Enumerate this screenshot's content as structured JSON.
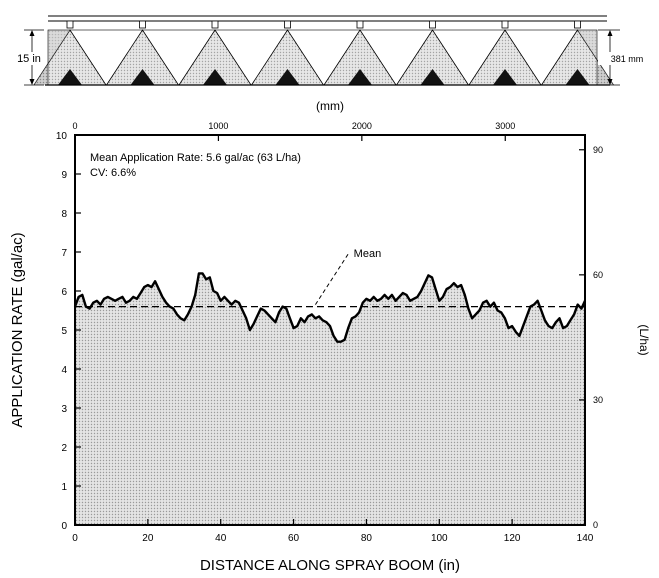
{
  "header": {
    "height_left_label": "15 in",
    "height_right_label": "381 mm",
    "nozzle_count": 8
  },
  "colors": {
    "fill": "#d6d6d6",
    "line": "#000000"
  },
  "chart_data": {
    "type": "area",
    "title": "",
    "xlabel": "DISTANCE ALONG SPRAY BOOM (in)",
    "ylabel": "APPLICATION RATE (gal/ac)",
    "x2label": "(mm)",
    "y2label": "(L/ha)",
    "xlim": [
      0,
      140
    ],
    "ylim": [
      0,
      10
    ],
    "x_ticks": [
      0,
      20,
      40,
      60,
      80,
      100,
      120,
      140
    ],
    "y_ticks": [
      0,
      1,
      2,
      3,
      4,
      5,
      6,
      7,
      8,
      9,
      10
    ],
    "x2_ticks": [
      0,
      1000,
      2000,
      3000
    ],
    "y2_ticks": [
      0,
      30,
      60,
      90
    ],
    "grid": false,
    "annotations": {
      "mean_rate": "Mean Application Rate: 5.6 gal/ac (63 L/ha)",
      "cv": "CV: 6.6%",
      "mean_label": "Mean"
    },
    "mean": 5.6,
    "series": [
      {
        "x": [
          0,
          1,
          2,
          3,
          4,
          5,
          6,
          7,
          8,
          9,
          10,
          11,
          12,
          13,
          14,
          15,
          16,
          17,
          18,
          19,
          20,
          21,
          22,
          23,
          24,
          25,
          26,
          27,
          28,
          29,
          30,
          31,
          32,
          33,
          34,
          35,
          36,
          37,
          38,
          39,
          40,
          41,
          42,
          43,
          44,
          45,
          46,
          47,
          48,
          49,
          50,
          51,
          52,
          53,
          54,
          55,
          56,
          57,
          58,
          59,
          60,
          61,
          62,
          63,
          64,
          65,
          66,
          67,
          68,
          69,
          70,
          71,
          72,
          73,
          74,
          75,
          76,
          77,
          78,
          79,
          80,
          81,
          82,
          83,
          84,
          85,
          86,
          87,
          88,
          89,
          90,
          91,
          92,
          93,
          94,
          95,
          96,
          97,
          98,
          99,
          100,
          101,
          102,
          103,
          104,
          105,
          106,
          107,
          108,
          109,
          110,
          111,
          112,
          113,
          114,
          115,
          116,
          117,
          118,
          119,
          120,
          121,
          122,
          123,
          124,
          125,
          126,
          127,
          128,
          129,
          130,
          131,
          132,
          133,
          134,
          135,
          136,
          137,
          138,
          139,
          140
        ],
        "values": [
          5.6,
          5.85,
          5.9,
          5.6,
          5.55,
          5.7,
          5.75,
          5.65,
          5.8,
          5.85,
          5.8,
          5.75,
          5.8,
          5.85,
          5.7,
          5.75,
          5.85,
          5.8,
          5.95,
          6.1,
          6.15,
          6.1,
          6.25,
          6.05,
          5.85,
          5.7,
          5.6,
          5.55,
          5.4,
          5.3,
          5.25,
          5.4,
          5.6,
          5.9,
          6.45,
          6.45,
          6.3,
          6.35,
          6.0,
          5.95,
          5.75,
          5.85,
          5.75,
          5.65,
          5.75,
          5.7,
          5.5,
          5.3,
          5.0,
          5.15,
          5.35,
          5.55,
          5.5,
          5.4,
          5.3,
          5.2,
          5.45,
          5.6,
          5.55,
          5.3,
          5.05,
          5.1,
          5.3,
          5.2,
          5.35,
          5.4,
          5.3,
          5.35,
          5.25,
          5.2,
          5.1,
          4.85,
          4.7,
          4.7,
          4.75,
          5.05,
          5.3,
          5.35,
          5.45,
          5.7,
          5.8,
          5.75,
          5.85,
          5.75,
          5.8,
          5.9,
          5.8,
          5.9,
          5.75,
          5.85,
          5.95,
          5.9,
          5.75,
          5.8,
          5.85,
          6.0,
          6.2,
          6.4,
          6.35,
          6.05,
          5.75,
          5.85,
          6.05,
          6.1,
          6.2,
          6.1,
          6.15,
          5.9,
          5.55,
          5.3,
          5.4,
          5.5,
          5.7,
          5.75,
          5.6,
          5.7,
          5.5,
          5.45,
          5.3,
          5.05,
          5.1,
          4.95,
          4.85,
          5.1,
          5.35,
          5.6,
          5.65,
          5.75,
          5.5,
          5.25,
          5.1,
          5.05,
          5.2,
          5.3,
          5.05,
          5.1,
          5.25,
          5.4,
          5.65,
          5.55,
          5.75
        ]
      }
    ]
  }
}
